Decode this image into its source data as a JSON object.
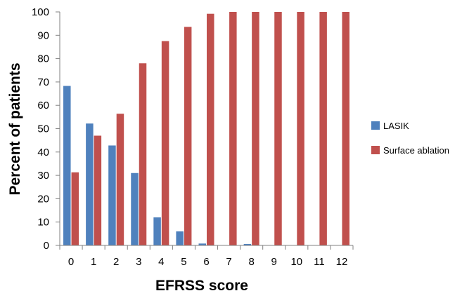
{
  "chart_data": {
    "type": "bar",
    "title": "",
    "xlabel": "EFRSS score",
    "ylabel": "Percent of patients",
    "ylim": [
      0,
      100
    ],
    "yticks": [
      "0",
      "10",
      "20",
      "30",
      "40",
      "50",
      "60",
      "70",
      "80",
      "90",
      "100"
    ],
    "grid": false,
    "legend_position": "right",
    "categories": [
      "0",
      "1",
      "2",
      "3",
      "4",
      "5",
      "6",
      "7",
      "8",
      "9",
      "10",
      "11",
      "12"
    ],
    "series": [
      {
        "name": "LASIK",
        "color": "#4f81bd",
        "values": [
          68.3,
          52.2,
          42.8,
          31.0,
          12.0,
          6.0,
          0.8,
          0,
          0.6,
          0,
          0,
          0,
          0
        ]
      },
      {
        "name": "Surface ablation",
        "color": "#c0504d",
        "values": [
          31.3,
          47.0,
          56.4,
          78.0,
          87.5,
          93.6,
          99.2,
          100,
          100,
          100,
          100,
          100,
          100
        ]
      }
    ]
  }
}
